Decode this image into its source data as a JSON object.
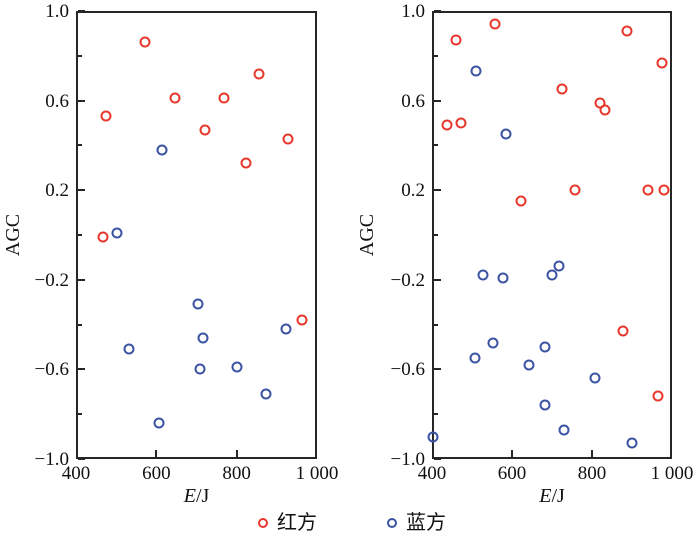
{
  "figure": {
    "background": "#ffffff",
    "axis_color": "#262626",
    "text_color": "#111111",
    "red_color": "#e8372c",
    "blue_color": "#3b53a3"
  },
  "legend": {
    "items": [
      {
        "label": "红方",
        "color": "#e8372c"
      },
      {
        "label": "蓝方",
        "color": "#3b53a3"
      }
    ]
  },
  "chart_data": [
    {
      "type": "scatter",
      "panel": "left",
      "title": "",
      "xlabel_var": "E",
      "xlabel_unit": "/J",
      "ylabel": "AGC",
      "xlim": [
        400,
        1000
      ],
      "ylim": [
        -1.0,
        1.0
      ],
      "grid": false,
      "x_ticks": [
        {
          "value": 400,
          "label": "400"
        },
        {
          "value": 600,
          "label": "600"
        },
        {
          "value": 800,
          "label": "800"
        },
        {
          "value": 1000,
          "label": "1 000"
        }
      ],
      "y_ticks": [
        {
          "value": 1.0,
          "label": "1.0"
        },
        {
          "value": 0.6,
          "label": "0.6"
        },
        {
          "value": 0.2,
          "label": "0.2"
        },
        {
          "value": -0.2,
          "label": "−0.2"
        },
        {
          "value": -0.6,
          "label": "−0.6"
        },
        {
          "value": -1.0,
          "label": "−1.0"
        }
      ],
      "y_minor_ticks": [
        0.8,
        0.4,
        0.0,
        -0.4,
        -0.8
      ],
      "series": [
        {
          "name": "红方",
          "color": "#e8372c",
          "points": [
            [
              572,
              0.86
            ],
            [
              856,
              0.72
            ],
            [
              646,
              0.61
            ],
            [
              768,
              0.61
            ],
            [
              475,
              0.53
            ],
            [
              722,
              0.47
            ],
            [
              928,
              0.43
            ],
            [
              822,
              0.32
            ],
            [
              466,
              -0.01
            ],
            [
              962,
              -0.38
            ]
          ]
        },
        {
          "name": "蓝方",
          "color": "#3b53a3",
          "points": [
            [
              615,
              0.38
            ],
            [
              501,
              0.01
            ],
            [
              703,
              -0.31
            ],
            [
              923,
              -0.42
            ],
            [
              715,
              -0.46
            ],
            [
              533,
              -0.51
            ],
            [
              709,
              -0.6
            ],
            [
              800,
              -0.59
            ],
            [
              872,
              -0.71
            ],
            [
              607,
              -0.84
            ]
          ]
        }
      ]
    },
    {
      "type": "scatter",
      "panel": "right",
      "title": "",
      "xlabel_var": "E",
      "xlabel_unit": "/J",
      "ylabel": "AGC",
      "xlim": [
        400,
        1000
      ],
      "ylim": [
        -1.0,
        1.0
      ],
      "grid": false,
      "x_ticks": [
        {
          "value": 400,
          "label": "400"
        },
        {
          "value": 600,
          "label": "600"
        },
        {
          "value": 800,
          "label": "800"
        },
        {
          "value": 1000,
          "label": "1 000"
        }
      ],
      "y_ticks": [
        {
          "value": 1.0,
          "label": "1.0"
        },
        {
          "value": 0.6,
          "label": "0.6"
        },
        {
          "value": 0.2,
          "label": "0.2"
        },
        {
          "value": -0.2,
          "label": "−0.2"
        },
        {
          "value": -0.6,
          "label": "−0.6"
        },
        {
          "value": -1.0,
          "label": "−1.0"
        }
      ],
      "y_minor_ticks": [
        0.8,
        0.4,
        0.0,
        -0.4,
        -0.8
      ],
      "series": [
        {
          "name": "红方",
          "color": "#e8372c",
          "points": [
            [
              558,
              0.94
            ],
            [
              887,
              0.91
            ],
            [
              461,
              0.87
            ],
            [
              974,
              0.77
            ],
            [
              725,
              0.65
            ],
            [
              819,
              0.59
            ],
            [
              832,
              0.56
            ],
            [
              472,
              0.5
            ],
            [
              437,
              0.49
            ],
            [
              757,
              0.2
            ],
            [
              939,
              0.2
            ],
            [
              981,
              0.2
            ],
            [
              622,
              0.15
            ],
            [
              877,
              -0.43
            ],
            [
              964,
              -0.72
            ]
          ]
        },
        {
          "name": "蓝方",
          "color": "#3b53a3",
          "points": [
            [
              510,
              0.73
            ],
            [
              584,
              0.45
            ],
            [
              718,
              -0.14
            ],
            [
              701,
              -0.18
            ],
            [
              527,
              -0.18
            ],
            [
              578,
              -0.19
            ],
            [
              553,
              -0.48
            ],
            [
              682,
              -0.5
            ],
            [
              508,
              -0.55
            ],
            [
              643,
              -0.58
            ],
            [
              807,
              -0.64
            ],
            [
              682,
              -0.76
            ],
            [
              730,
              -0.87
            ],
            [
              403,
              -0.9
            ],
            [
              900,
              -0.93
            ]
          ]
        }
      ]
    }
  ]
}
